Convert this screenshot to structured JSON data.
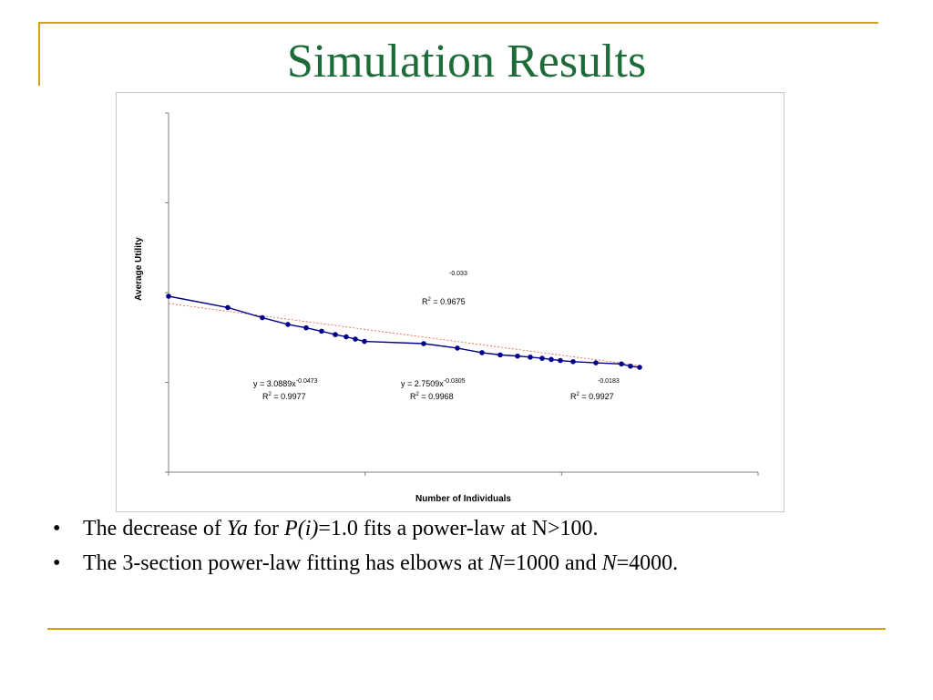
{
  "slide": {
    "title": "Simulation Results",
    "title_color": "#1e6b3a",
    "accent_color": "#d4a017"
  },
  "chart_data": {
    "type": "line",
    "xlabel": "Number of Individuals",
    "ylabel": "Average Utility",
    "x_log_scale": true,
    "grid": false,
    "series": [
      {
        "values": [
          0.6,
          0.5,
          0.41,
          0.35,
          0.32,
          0.29,
          0.26,
          0.24,
          0.22,
          0.2,
          0.18,
          0.14,
          0.1,
          0.08,
          0.07,
          0.06,
          0.05,
          0.04,
          0.03,
          0.02,
          0.01,
          0.0,
          -0.02,
          -0.03
        ],
        "color": "#00008b",
        "marker_color": "#00008b"
      }
    ],
    "trendline_color": "#e05a3a",
    "annotations": [
      {
        "id": "fit1",
        "eq_prefix": "y = 3.0889x",
        "exponent": "-0.0473",
        "r2_label": "R",
        "r2_sup": "2",
        "r2_value": " = 0.9977"
      },
      {
        "id": "fit2",
        "eq_prefix": "y = 2.7509x",
        "exponent": "-0.0305",
        "r2_label": "R",
        "r2_sup": "2",
        "r2_value": " = 0.9968"
      },
      {
        "id": "fit3",
        "eq_prefix": "",
        "exponent": "-0.0183",
        "r2_label": "R",
        "r2_sup": "2",
        "r2_value": " = 0.9927"
      },
      {
        "id": "fit_all",
        "eq_prefix": "",
        "exponent": "-0.033",
        "r2_label": "R",
        "r2_sup": "2",
        "r2_value": " = 0.9675"
      }
    ]
  },
  "bullets": [
    {
      "marker": "•",
      "parts": [
        "The decrease of ",
        "Ya",
        " for ",
        "P(i)",
        "=1.0 fits a power-law at N>100."
      ]
    },
    {
      "marker": "•",
      "parts": [
        "The 3-section power-law fitting has elbows at ",
        "N",
        "=1000 and ",
        "N",
        "=4000."
      ]
    }
  ]
}
